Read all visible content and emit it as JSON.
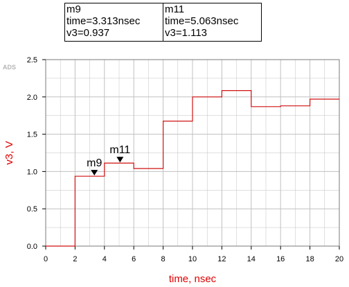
{
  "watermark": "ADS",
  "marker_table": [
    {
      "name": "m9",
      "time_text": "time=3.313nsec",
      "value_text": "v3=0.937"
    },
    {
      "name": "m11",
      "time_text": "time=5.063nsec",
      "value_text": "v3=1.113"
    }
  ],
  "chart_data": {
    "type": "line",
    "title": "",
    "xlabel": "time, nsec",
    "ylabel": "v3, V",
    "xlim": [
      0,
      20
    ],
    "ylim": [
      0,
      2.5
    ],
    "x_ticks": [
      "0",
      "2",
      "4",
      "6",
      "8",
      "10",
      "12",
      "14",
      "16",
      "18",
      "20"
    ],
    "y_ticks": [
      "0.0",
      "0.5",
      "1.0",
      "1.5",
      "2.0",
      "2.5"
    ],
    "grid": true,
    "series": [
      {
        "color": "#d01010",
        "step": true,
        "x": [
          0,
          2,
          2,
          4,
          4,
          6,
          6,
          8,
          8,
          10,
          10,
          12,
          12,
          14,
          14,
          16,
          16,
          18,
          18,
          20
        ],
        "y": [
          0,
          0,
          0.937,
          0.937,
          1.113,
          1.113,
          1.04,
          1.04,
          1.675,
          1.675,
          2.0,
          2.0,
          2.085,
          2.085,
          1.87,
          1.87,
          1.88,
          1.88,
          1.97,
          1.97
        ]
      }
    ],
    "markers": [
      {
        "label": "m9",
        "x": 3.313,
        "y": 0.937
      },
      {
        "label": "m11",
        "x": 5.063,
        "y": 1.113
      }
    ],
    "colors": {
      "axis_label": "#e00000",
      "trace": "#d01010",
      "grid": "#c0c0c0",
      "watermark": "#b5b5b5"
    }
  }
}
